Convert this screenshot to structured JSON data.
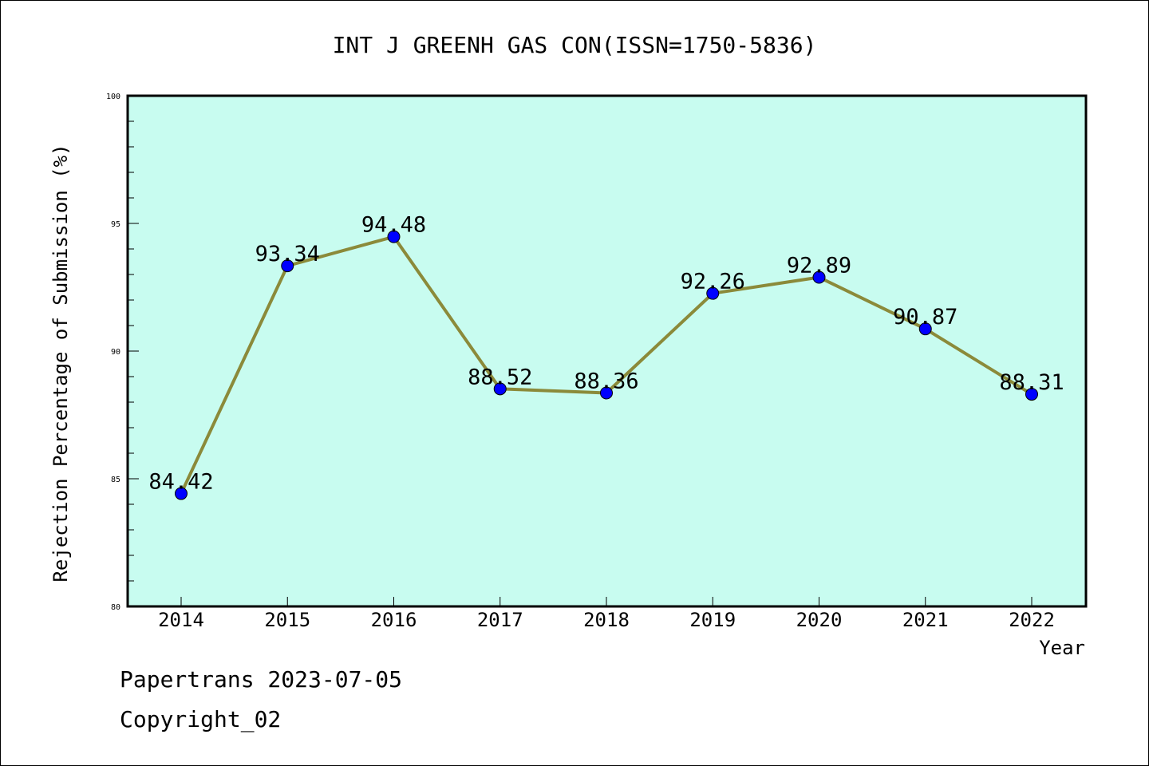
{
  "chart_data": {
    "type": "line",
    "title": "INT J GREENH GAS CON(ISSN=1750-5836)",
    "xlabel": "Year",
    "ylabel": "Rejection Percentage of Submission (%)",
    "ylim": [
      80,
      100
    ],
    "yticks": [
      80,
      85,
      90,
      95,
      100
    ],
    "categories": [
      "2014",
      "2015",
      "2016",
      "2017",
      "2018",
      "2019",
      "2020",
      "2021",
      "2022"
    ],
    "values": [
      84.42,
      93.34,
      94.48,
      88.52,
      88.36,
      92.26,
      92.89,
      90.87,
      88.31
    ],
    "value_labels": [
      "84.42",
      "93.34",
      "94.48",
      "88.52",
      "88.36",
      "92.26",
      "92.89",
      "90.87",
      "88.31"
    ],
    "grid": false,
    "colors": {
      "plot_background": "#c8fcf0",
      "line": "#8b8a3a",
      "marker": "#0000ff"
    }
  },
  "footer": {
    "date_text": "Papertrans 2023-07-05",
    "copyright_text": "Copyright_02"
  }
}
